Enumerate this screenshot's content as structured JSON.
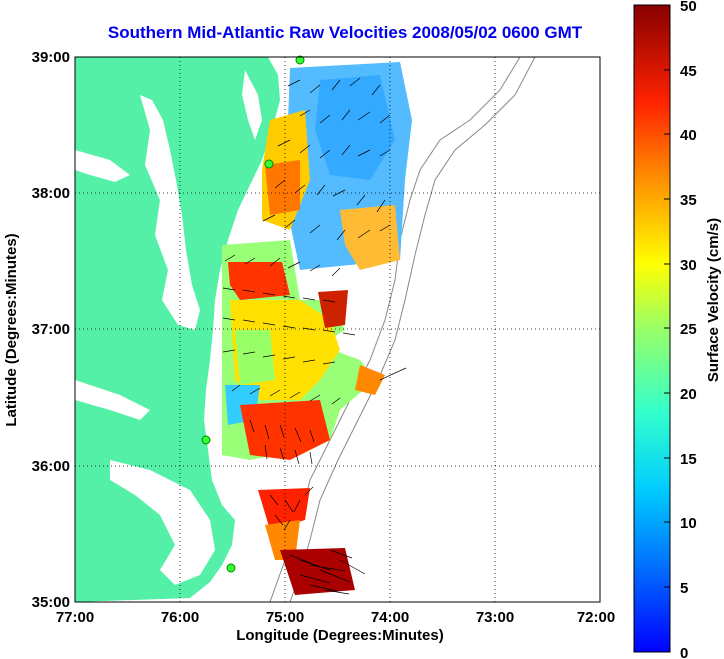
{
  "title": "Southern Mid-Atlantic Raw Velocities 2008/05/02 0600 GMT",
  "map": {
    "xlabel": "Longitude (Degrees:Minutes)",
    "ylabel": "Latitude (Degrees:Minutes)",
    "x_ticks": [
      "77:00",
      "76:00",
      "75:00",
      "74:00",
      "73:00",
      "72:00"
    ],
    "y_ticks": [
      "39:00",
      "38:00",
      "37:00",
      "36:00",
      "35:00"
    ],
    "lon_range": [
      -77,
      -72
    ],
    "lat_range": [
      35,
      39
    ],
    "grid": "dotted",
    "land_color": "#55f0a8",
    "station_color": "#33ff33"
  },
  "colorbar": {
    "label": "Surface Velocity (cm/s)",
    "ticks": [
      "0",
      "5",
      "10",
      "15",
      "20",
      "25",
      "30",
      "35",
      "40",
      "45",
      "50"
    ],
    "min": 0,
    "max": 50,
    "colormap": "jet"
  }
}
